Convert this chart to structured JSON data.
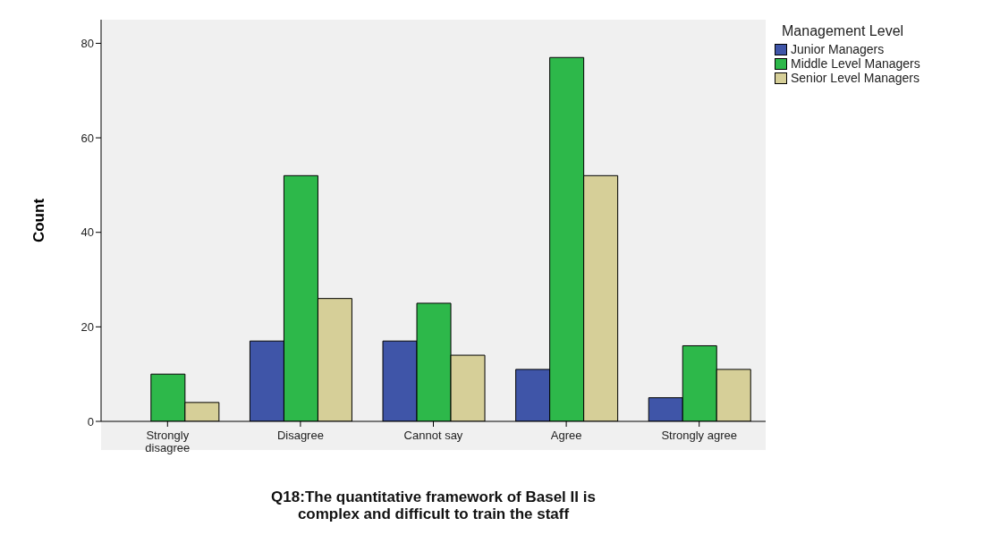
{
  "chart_data": {
    "type": "bar",
    "xlabel": "Q18:The quantitative framework of Basel II is complex and difficult to train the staff",
    "ylabel": "Count",
    "legend_title": "Management Level",
    "legend": "top right",
    "grid": false,
    "categories": [
      "Strongly disagree",
      "Disagree",
      "Cannot say",
      "Agree",
      "Strongly agree"
    ],
    "series": [
      {
        "name": "Junior Managers",
        "color": "#3f55a8",
        "values": [
          0,
          17,
          17,
          11,
          5
        ]
      },
      {
        "name": "Middle Level Managers",
        "color": "#2db84a",
        "values": [
          10,
          52,
          25,
          77,
          16
        ]
      },
      {
        "name": "Senior Level Managers",
        "color": "#d6cf98",
        "values": [
          4,
          26,
          14,
          52,
          11
        ]
      }
    ],
    "ylim": [
      0,
      85
    ],
    "yticks": [
      0,
      20,
      40,
      60,
      80
    ]
  }
}
